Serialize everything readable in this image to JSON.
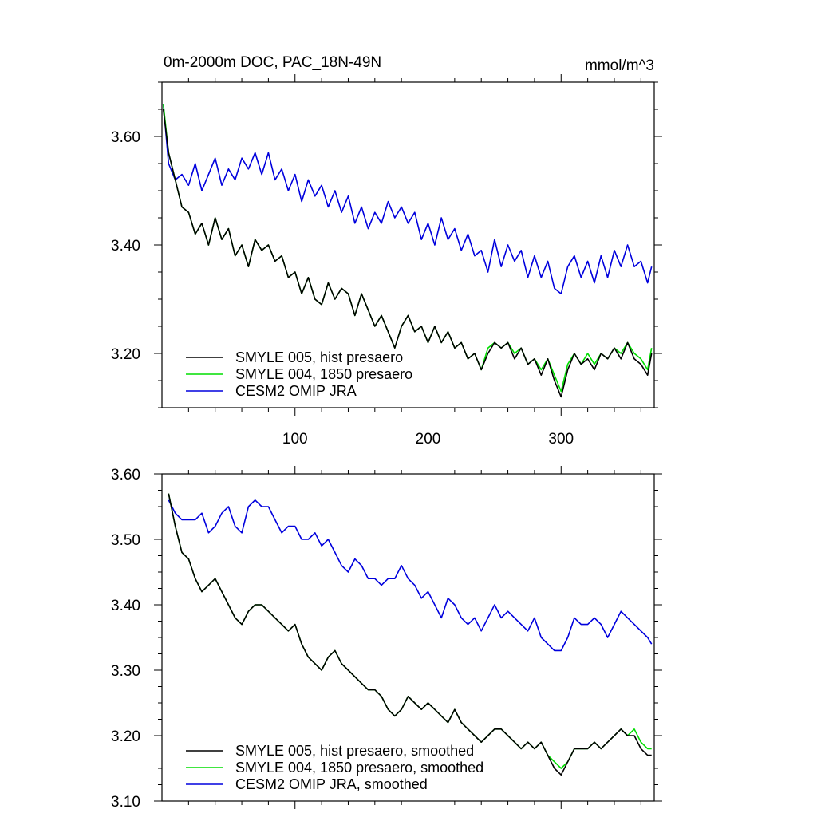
{
  "chart_data": [
    {
      "type": "line",
      "title": "0m-2000m DOC, PAC_18N-49N",
      "units": "mmol/m^3",
      "xlim": [
        0,
        370
      ],
      "ylim": [
        3.1,
        3.7
      ],
      "x_tick_values": [
        100,
        200,
        300
      ],
      "x_tick_labels": [
        "100",
        "200",
        "300"
      ],
      "y_tick_values": [
        3.2,
        3.4,
        3.6
      ],
      "y_tick_labels": [
        "3.20",
        "3.40",
        "3.60"
      ],
      "legend_position": "bottom-left",
      "series": [
        {
          "name": "SMYLE 005, hist presaero",
          "color": "#000000",
          "x": [
            1,
            5,
            10,
            15,
            20,
            25,
            30,
            35,
            40,
            45,
            50,
            55,
            60,
            65,
            70,
            75,
            80,
            85,
            90,
            95,
            100,
            105,
            110,
            115,
            120,
            125,
            130,
            135,
            140,
            145,
            150,
            155,
            160,
            165,
            170,
            175,
            180,
            185,
            190,
            195,
            200,
            205,
            210,
            215,
            220,
            225,
            230,
            235,
            240,
            245,
            250,
            255,
            260,
            265,
            270,
            275,
            280,
            285,
            290,
            295,
            300,
            305,
            310,
            315,
            320,
            325,
            330,
            335,
            340,
            345,
            350,
            355,
            360,
            365,
            368
          ],
          "y": [
            3.65,
            3.57,
            3.52,
            3.47,
            3.46,
            3.42,
            3.44,
            3.4,
            3.45,
            3.41,
            3.43,
            3.38,
            3.4,
            3.36,
            3.41,
            3.39,
            3.4,
            3.37,
            3.38,
            3.34,
            3.35,
            3.31,
            3.34,
            3.3,
            3.29,
            3.33,
            3.3,
            3.32,
            3.31,
            3.27,
            3.31,
            3.28,
            3.25,
            3.27,
            3.24,
            3.21,
            3.25,
            3.27,
            3.24,
            3.25,
            3.22,
            3.25,
            3.22,
            3.24,
            3.21,
            3.22,
            3.19,
            3.2,
            3.17,
            3.2,
            3.22,
            3.21,
            3.22,
            3.19,
            3.21,
            3.18,
            3.19,
            3.16,
            3.19,
            3.15,
            3.12,
            3.17,
            3.2,
            3.18,
            3.19,
            3.17,
            3.2,
            3.19,
            3.21,
            3.19,
            3.22,
            3.19,
            3.18,
            3.16,
            3.2
          ]
        },
        {
          "name": "SMYLE 004, 1850 presaero",
          "color": "#00dd00",
          "x": [
            1,
            5,
            10,
            15,
            20,
            25,
            30,
            35,
            40,
            45,
            50,
            55,
            60,
            65,
            70,
            75,
            80,
            85,
            90,
            95,
            100,
            105,
            110,
            115,
            120,
            125,
            130,
            135,
            140,
            145,
            150,
            155,
            160,
            165,
            170,
            175,
            180,
            185,
            190,
            195,
            200,
            205,
            210,
            215,
            220,
            225,
            230,
            235,
            240,
            245,
            250,
            255,
            260,
            265,
            270,
            275,
            280,
            285,
            290,
            295,
            300,
            305,
            310,
            315,
            320,
            325,
            330,
            335,
            340,
            345,
            350,
            355,
            360,
            365,
            368
          ],
          "y": [
            3.66,
            3.57,
            3.52,
            3.47,
            3.46,
            3.42,
            3.44,
            3.4,
            3.45,
            3.41,
            3.43,
            3.38,
            3.4,
            3.36,
            3.41,
            3.39,
            3.4,
            3.37,
            3.38,
            3.34,
            3.35,
            3.31,
            3.34,
            3.3,
            3.29,
            3.33,
            3.3,
            3.32,
            3.31,
            3.27,
            3.31,
            3.28,
            3.25,
            3.27,
            3.24,
            3.21,
            3.25,
            3.27,
            3.24,
            3.25,
            3.22,
            3.25,
            3.22,
            3.24,
            3.21,
            3.22,
            3.19,
            3.2,
            3.17,
            3.21,
            3.22,
            3.21,
            3.22,
            3.2,
            3.21,
            3.18,
            3.19,
            3.17,
            3.19,
            3.16,
            3.13,
            3.18,
            3.2,
            3.18,
            3.2,
            3.18,
            3.2,
            3.19,
            3.21,
            3.2,
            3.22,
            3.2,
            3.19,
            3.17,
            3.21
          ]
        },
        {
          "name": "CESM2 OMIP JRA",
          "color": "#0000dd",
          "x": [
            1,
            5,
            10,
            15,
            20,
            25,
            30,
            35,
            40,
            45,
            50,
            55,
            60,
            65,
            70,
            75,
            80,
            85,
            90,
            95,
            100,
            105,
            110,
            115,
            120,
            125,
            130,
            135,
            140,
            145,
            150,
            155,
            160,
            165,
            170,
            175,
            180,
            185,
            190,
            195,
            200,
            205,
            210,
            215,
            220,
            225,
            230,
            235,
            240,
            245,
            250,
            255,
            260,
            265,
            270,
            275,
            280,
            285,
            290,
            295,
            300,
            305,
            310,
            315,
            320,
            325,
            330,
            335,
            340,
            345,
            350,
            355,
            360,
            365,
            368
          ],
          "y": [
            3.66,
            3.55,
            3.52,
            3.53,
            3.51,
            3.55,
            3.5,
            3.53,
            3.56,
            3.51,
            3.54,
            3.52,
            3.56,
            3.54,
            3.57,
            3.53,
            3.57,
            3.52,
            3.54,
            3.5,
            3.53,
            3.48,
            3.52,
            3.49,
            3.51,
            3.47,
            3.5,
            3.46,
            3.49,
            3.44,
            3.47,
            3.43,
            3.46,
            3.44,
            3.48,
            3.45,
            3.47,
            3.44,
            3.46,
            3.41,
            3.44,
            3.4,
            3.45,
            3.41,
            3.43,
            3.39,
            3.42,
            3.38,
            3.39,
            3.35,
            3.41,
            3.36,
            3.4,
            3.37,
            3.39,
            3.34,
            3.38,
            3.34,
            3.37,
            3.32,
            3.31,
            3.36,
            3.38,
            3.34,
            3.37,
            3.33,
            3.38,
            3.34,
            3.39,
            3.36,
            3.4,
            3.36,
            3.37,
            3.33,
            3.36
          ]
        }
      ]
    },
    {
      "type": "line",
      "title": "",
      "xlim": [
        0,
        370
      ],
      "ylim": [
        3.1,
        3.6
      ],
      "x_tick_values": [
        100,
        200,
        300
      ],
      "y_tick_values": [
        3.1,
        3.2,
        3.3,
        3.4,
        3.5,
        3.6
      ],
      "y_tick_labels": [
        "3.10",
        "3.20",
        "3.30",
        "3.40",
        "3.50",
        "3.60"
      ],
      "legend_position": "bottom-left",
      "series": [
        {
          "name": "SMYLE 005, hist presaero, smoothed",
          "color": "#000000",
          "x": [
            5,
            10,
            15,
            20,
            25,
            30,
            35,
            40,
            45,
            50,
            55,
            60,
            65,
            70,
            75,
            80,
            85,
            90,
            95,
            100,
            105,
            110,
            115,
            120,
            125,
            130,
            135,
            140,
            145,
            150,
            155,
            160,
            165,
            170,
            175,
            180,
            185,
            190,
            195,
            200,
            205,
            210,
            215,
            220,
            225,
            230,
            235,
            240,
            245,
            250,
            255,
            260,
            265,
            270,
            275,
            280,
            285,
            290,
            295,
            300,
            305,
            310,
            315,
            320,
            325,
            330,
            335,
            340,
            345,
            350,
            355,
            360,
            365,
            368
          ],
          "y": [
            3.57,
            3.52,
            3.48,
            3.47,
            3.44,
            3.42,
            3.43,
            3.44,
            3.42,
            3.4,
            3.38,
            3.37,
            3.39,
            3.4,
            3.4,
            3.39,
            3.38,
            3.37,
            3.36,
            3.37,
            3.34,
            3.32,
            3.31,
            3.3,
            3.32,
            3.33,
            3.31,
            3.3,
            3.29,
            3.28,
            3.27,
            3.27,
            3.26,
            3.24,
            3.23,
            3.24,
            3.26,
            3.25,
            3.24,
            3.25,
            3.24,
            3.23,
            3.22,
            3.24,
            3.22,
            3.21,
            3.2,
            3.19,
            3.2,
            3.21,
            3.21,
            3.2,
            3.19,
            3.18,
            3.19,
            3.18,
            3.19,
            3.17,
            3.15,
            3.14,
            3.16,
            3.18,
            3.18,
            3.18,
            3.19,
            3.18,
            3.19,
            3.2,
            3.21,
            3.2,
            3.2,
            3.18,
            3.17,
            3.17
          ]
        },
        {
          "name": "SMYLE 004, 1850 presaero, smoothed",
          "color": "#00dd00",
          "x": [
            5,
            10,
            15,
            20,
            25,
            30,
            35,
            40,
            45,
            50,
            55,
            60,
            65,
            70,
            75,
            80,
            85,
            90,
            95,
            100,
            105,
            110,
            115,
            120,
            125,
            130,
            135,
            140,
            145,
            150,
            155,
            160,
            165,
            170,
            175,
            180,
            185,
            190,
            195,
            200,
            205,
            210,
            215,
            220,
            225,
            230,
            235,
            240,
            245,
            250,
            255,
            260,
            265,
            270,
            275,
            280,
            285,
            290,
            295,
            300,
            305,
            310,
            315,
            320,
            325,
            330,
            335,
            340,
            345,
            350,
            355,
            360,
            365,
            368
          ],
          "y": [
            3.57,
            3.52,
            3.48,
            3.47,
            3.44,
            3.42,
            3.43,
            3.44,
            3.42,
            3.4,
            3.38,
            3.37,
            3.39,
            3.4,
            3.4,
            3.39,
            3.38,
            3.37,
            3.36,
            3.37,
            3.34,
            3.32,
            3.31,
            3.3,
            3.32,
            3.33,
            3.31,
            3.3,
            3.29,
            3.28,
            3.27,
            3.27,
            3.26,
            3.24,
            3.23,
            3.24,
            3.26,
            3.25,
            3.24,
            3.25,
            3.24,
            3.23,
            3.22,
            3.24,
            3.22,
            3.21,
            3.2,
            3.19,
            3.2,
            3.21,
            3.21,
            3.2,
            3.19,
            3.18,
            3.19,
            3.18,
            3.19,
            3.17,
            3.16,
            3.15,
            3.16,
            3.18,
            3.18,
            3.18,
            3.19,
            3.18,
            3.19,
            3.2,
            3.21,
            3.2,
            3.21,
            3.19,
            3.18,
            3.18
          ]
        },
        {
          "name": "CESM2 OMIP JRA, smoothed",
          "color": "#0000dd",
          "x": [
            5,
            10,
            15,
            20,
            25,
            30,
            35,
            40,
            45,
            50,
            55,
            60,
            65,
            70,
            75,
            80,
            85,
            90,
            95,
            100,
            105,
            110,
            115,
            120,
            125,
            130,
            135,
            140,
            145,
            150,
            155,
            160,
            165,
            170,
            175,
            180,
            185,
            190,
            195,
            200,
            205,
            210,
            215,
            220,
            225,
            230,
            235,
            240,
            245,
            250,
            255,
            260,
            265,
            270,
            275,
            280,
            285,
            290,
            295,
            300,
            305,
            310,
            315,
            320,
            325,
            330,
            335,
            340,
            345,
            350,
            355,
            360,
            365,
            368
          ],
          "y": [
            3.56,
            3.54,
            3.53,
            3.53,
            3.53,
            3.54,
            3.51,
            3.52,
            3.54,
            3.55,
            3.52,
            3.51,
            3.55,
            3.56,
            3.55,
            3.55,
            3.53,
            3.51,
            3.52,
            3.52,
            3.5,
            3.5,
            3.51,
            3.49,
            3.5,
            3.48,
            3.46,
            3.45,
            3.47,
            3.46,
            3.44,
            3.44,
            3.43,
            3.44,
            3.44,
            3.46,
            3.44,
            3.43,
            3.41,
            3.42,
            3.4,
            3.38,
            3.41,
            3.4,
            3.38,
            3.37,
            3.38,
            3.36,
            3.38,
            3.4,
            3.38,
            3.39,
            3.38,
            3.37,
            3.36,
            3.38,
            3.35,
            3.34,
            3.33,
            3.33,
            3.35,
            3.38,
            3.37,
            3.37,
            3.38,
            3.37,
            3.35,
            3.37,
            3.39,
            3.38,
            3.37,
            3.36,
            3.35,
            3.34
          ]
        }
      ]
    }
  ]
}
